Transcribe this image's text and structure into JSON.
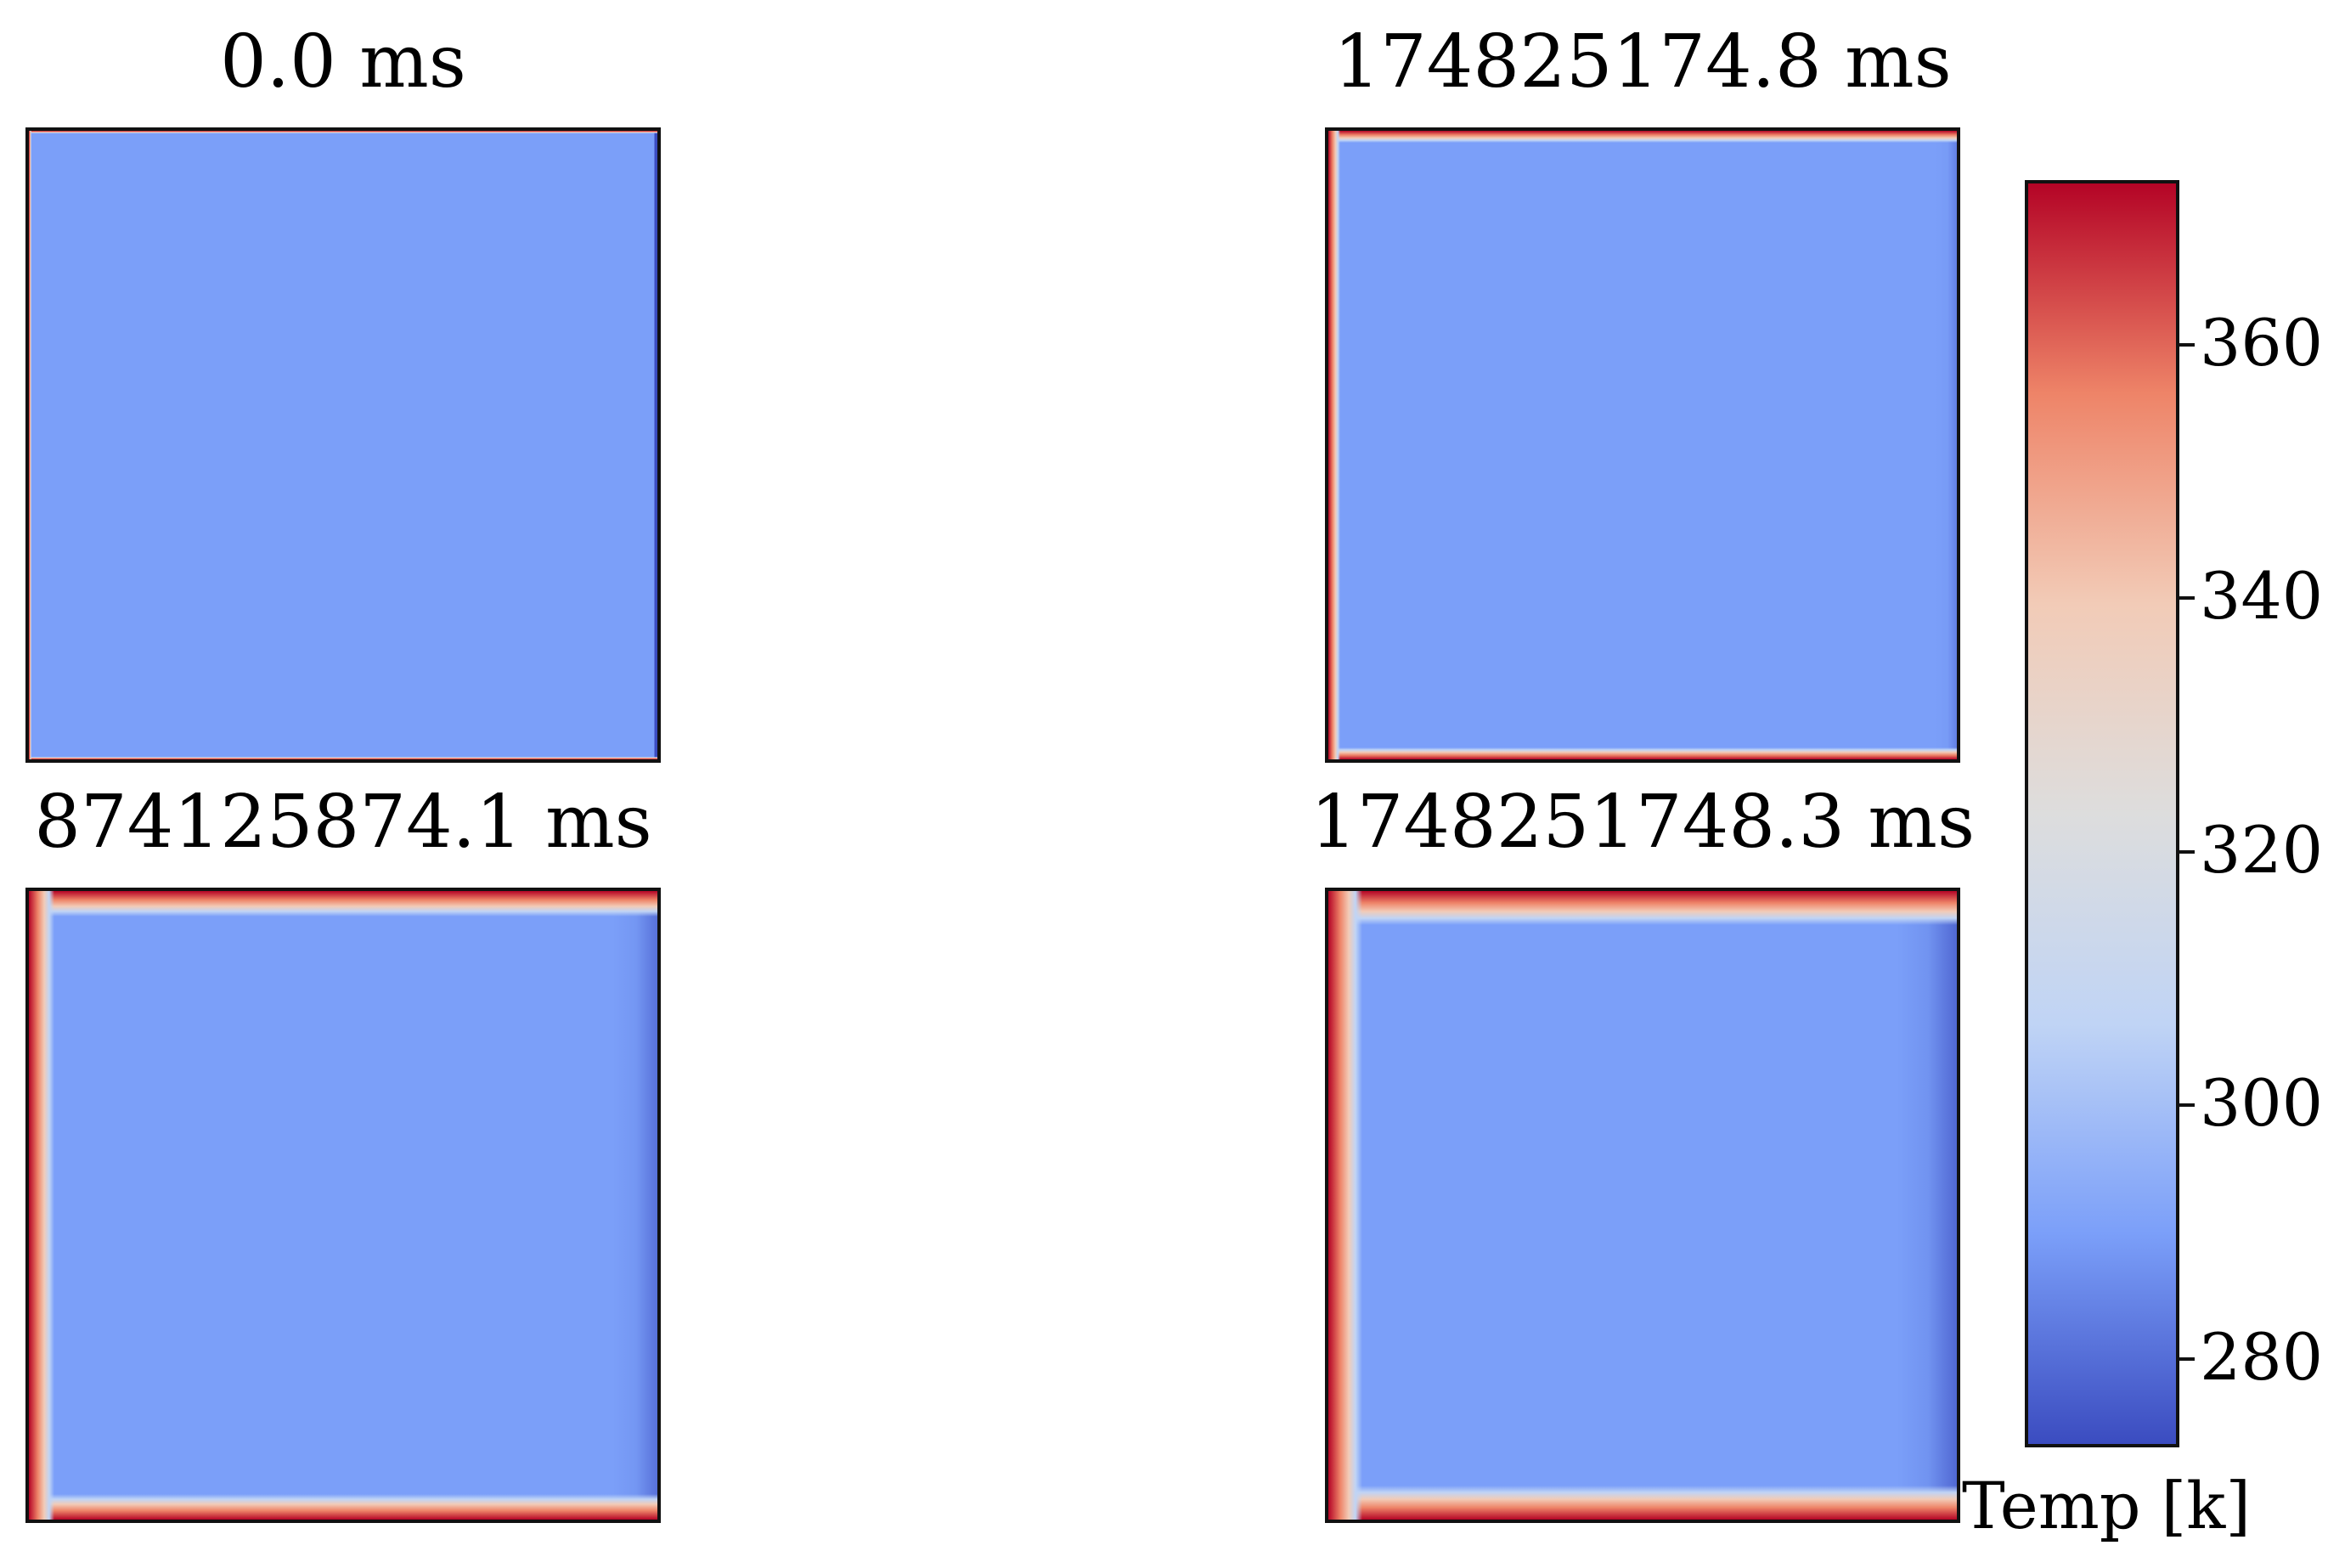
{
  "chart_data": {
    "type": "heatmap",
    "panels": [
      {
        "title": "0.0 ms",
        "spread": 0.06,
        "right_cool": 0.0
      },
      {
        "title": "174825174.8 ms",
        "spread": 0.35,
        "right_cool": 0.25
      },
      {
        "title": "874125874.1 ms",
        "spread": 0.75,
        "right_cool": 0.55
      },
      {
        "title": "1748251748.3 ms",
        "spread": 1.0,
        "right_cool": 0.75
      }
    ],
    "colorbar": {
      "label": "Temp [k]",
      "range": [
        273,
        373
      ],
      "ticks": [
        280,
        300,
        320,
        340,
        360
      ],
      "colormap": "coolwarm",
      "colors": [
        "#3b4cc0",
        "#7b9ff9",
        "#c0d4f5",
        "#dddddd",
        "#f2cbb7",
        "#ee8468",
        "#b40426"
      ]
    },
    "boundary": {
      "hot_sides": [
        "top",
        "left",
        "bottom"
      ],
      "cool_side": "right",
      "interior_value": 293
    }
  }
}
